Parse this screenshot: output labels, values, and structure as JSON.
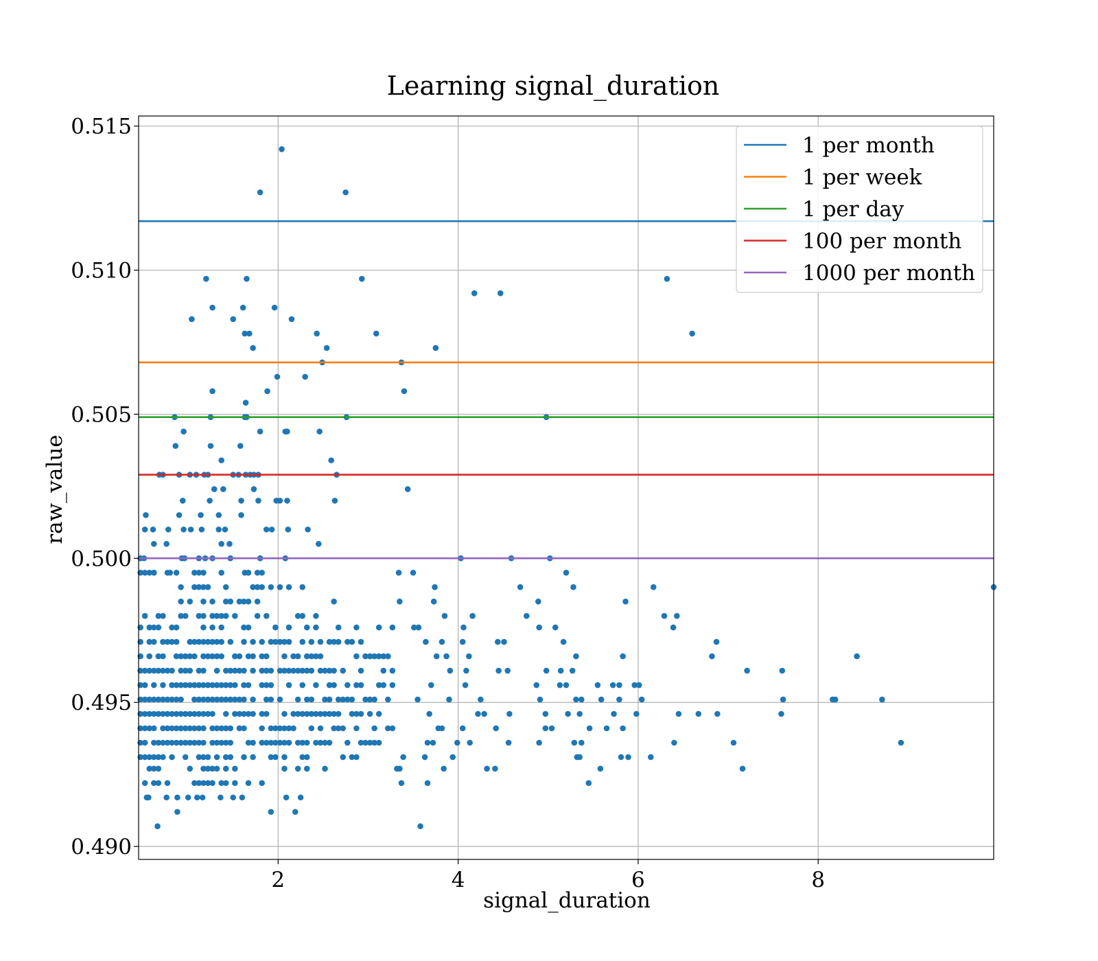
{
  "chart_data": {
    "type": "scatter",
    "title": "Learning signal_duration",
    "xlabel": "signal_duration",
    "ylabel": "raw_value",
    "xlim": [
      0.45,
      9.95
    ],
    "ylim": [
      0.48955,
      0.51535
    ],
    "xticks": [
      2,
      4,
      6,
      8
    ],
    "xtick_labels": [
      "2",
      "4",
      "6",
      "8"
    ],
    "yticks": [
      0.49,
      0.495,
      0.5,
      0.505,
      0.51,
      0.515
    ],
    "ytick_labels": [
      "0.490",
      "0.495",
      "0.500",
      "0.505",
      "0.510",
      "0.515"
    ],
    "grid": true,
    "legend_position": "top-right",
    "marker_color": "#1f77b4",
    "hlines": [
      {
        "name": "1 per month",
        "y": 0.5117,
        "color": "#1f77b4"
      },
      {
        "name": "1 per week",
        "y": 0.5068,
        "color": "#ff7f0e"
      },
      {
        "name": "1 per day",
        "y": 0.5049,
        "color": "#2ca02c"
      },
      {
        "name": "100 per month",
        "y": 0.5029,
        "color": "#d62728"
      },
      {
        "name": "1000 per month",
        "y": 0.5,
        "color": "#9467bd"
      }
    ],
    "points": [
      [
        2.04,
        0.5142
      ],
      [
        1.8,
        0.5127
      ],
      [
        2.75,
        0.5127
      ],
      [
        1.2,
        0.5097
      ],
      [
        1.65,
        0.5097
      ],
      [
        2.93,
        0.5097
      ],
      [
        6.32,
        0.5097
      ],
      [
        4.18,
        0.5092
      ],
      [
        4.47,
        0.5092
      ],
      [
        1.27,
        0.5087
      ],
      [
        1.61,
        0.5087
      ],
      [
        1.96,
        0.5087
      ],
      [
        1.04,
        0.5083
      ],
      [
        1.5,
        0.5083
      ],
      [
        2.15,
        0.5083
      ],
      [
        1.63,
        0.5078
      ],
      [
        1.68,
        0.5078
      ],
      [
        2.43,
        0.5078
      ],
      [
        3.09,
        0.5078
      ],
      [
        6.6,
        0.5078
      ],
      [
        1.72,
        0.5073
      ],
      [
        2.54,
        0.5073
      ],
      [
        3.75,
        0.5073
      ],
      [
        2.49,
        0.5068
      ],
      [
        3.37,
        0.5068
      ],
      [
        1.99,
        0.5063
      ],
      [
        2.3,
        0.5063
      ],
      [
        1.27,
        0.5058
      ],
      [
        1.88,
        0.5058
      ],
      [
        3.4,
        0.5058
      ],
      [
        1.64,
        0.5054
      ],
      [
        0.85,
        0.5049
      ],
      [
        1.25,
        0.5049
      ],
      [
        1.63,
        0.5049
      ],
      [
        1.65,
        0.5049
      ],
      [
        2.76,
        0.5049
      ],
      [
        4.98,
        0.5049
      ],
      [
        0.95,
        0.5044
      ],
      [
        1.8,
        0.5044
      ],
      [
        2.08,
        0.5044
      ],
      [
        2.1,
        0.5044
      ],
      [
        2.46,
        0.5044
      ],
      [
        0.86,
        0.5039
      ],
      [
        1.25,
        0.5039
      ],
      [
        1.58,
        0.5039
      ],
      [
        1.37,
        0.5034
      ],
      [
        2.59,
        0.5034
      ],
      [
        0.68,
        0.5029
      ],
      [
        0.72,
        0.5029
      ],
      [
        0.9,
        0.5029
      ],
      [
        1.02,
        0.5029
      ],
      [
        1.09,
        0.5029
      ],
      [
        1.18,
        0.5029
      ],
      [
        1.22,
        0.5029
      ],
      [
        1.5,
        0.5029
      ],
      [
        1.56,
        0.5029
      ],
      [
        1.64,
        0.5029
      ],
      [
        1.69,
        0.5029
      ],
      [
        1.73,
        0.5029
      ],
      [
        1.78,
        0.5029
      ],
      [
        2.65,
        0.5029
      ],
      [
        1.29,
        0.5024
      ],
      [
        1.39,
        0.5024
      ],
      [
        1.73,
        0.5024
      ],
      [
        3.44,
        0.5024
      ],
      [
        0.94,
        0.502
      ],
      [
        1.24,
        0.502
      ],
      [
        1.59,
        0.502
      ],
      [
        1.78,
        0.502
      ],
      [
        1.98,
        0.502
      ],
      [
        2.02,
        0.502
      ],
      [
        2.1,
        0.502
      ],
      [
        2.63,
        0.502
      ],
      [
        0.53,
        0.5015
      ],
      [
        0.9,
        0.5015
      ],
      [
        1.14,
        0.5015
      ],
      [
        1.34,
        0.5015
      ],
      [
        1.59,
        0.5015
      ],
      [
        0.52,
        0.501
      ],
      [
        0.61,
        0.501
      ],
      [
        0.78,
        0.501
      ],
      [
        0.95,
        0.501
      ],
      [
        1.03,
        0.501
      ],
      [
        1.15,
        0.501
      ],
      [
        1.34,
        0.501
      ],
      [
        1.41,
        0.501
      ],
      [
        1.87,
        0.501
      ],
      [
        1.93,
        0.501
      ],
      [
        2.11,
        0.501
      ],
      [
        2.33,
        0.501
      ],
      [
        0.62,
        0.5005
      ],
      [
        0.76,
        0.5005
      ],
      [
        1.37,
        0.5005
      ],
      [
        1.46,
        0.5005
      ],
      [
        2.45,
        0.5005
      ],
      [
        0.47,
        0.5
      ],
      [
        0.51,
        0.5
      ],
      [
        0.93,
        0.5
      ],
      [
        0.96,
        0.5
      ],
      [
        1.12,
        0.5
      ],
      [
        1.19,
        0.5
      ],
      [
        1.27,
        0.5
      ],
      [
        1.47,
        0.5
      ],
      [
        1.8,
        0.5
      ],
      [
        2.08,
        0.5
      ],
      [
        4.03,
        0.5
      ],
      [
        4.59,
        0.5
      ],
      [
        5.02,
        0.5
      ],
      [
        0.47,
        0.4995
      ],
      [
        0.62,
        0.4995
      ],
      [
        0.8,
        0.4995
      ],
      [
        1.12,
        0.4995
      ],
      [
        1.63,
        0.4995
      ],
      [
        3.34,
        0.4995
      ],
      [
        3.5,
        0.4995
      ],
      [
        5.2,
        0.4995
      ],
      [
        3.74,
        0.499
      ],
      [
        4.69,
        0.499
      ],
      [
        5.28,
        0.499
      ],
      [
        6.17,
        0.499
      ],
      [
        9.95,
        0.499
      ],
      [
        3.35,
        0.4985
      ],
      [
        3.73,
        0.4985
      ],
      [
        4.89,
        0.4985
      ],
      [
        5.86,
        0.4985
      ],
      [
        3.85,
        0.498
      ],
      [
        4.16,
        0.498
      ],
      [
        4.76,
        0.498
      ],
      [
        6.29,
        0.498
      ],
      [
        6.43,
        0.498
      ],
      [
        3.51,
        0.4976
      ],
      [
        3.56,
        0.4976
      ],
      [
        4.06,
        0.4976
      ],
      [
        4.9,
        0.4976
      ],
      [
        5.08,
        0.4976
      ],
      [
        6.39,
        0.4976
      ],
      [
        3.64,
        0.4971
      ],
      [
        3.82,
        0.4971
      ],
      [
        4.05,
        0.4971
      ],
      [
        4.44,
        0.4971
      ],
      [
        4.51,
        0.4971
      ],
      [
        5.17,
        0.4971
      ],
      [
        6.87,
        0.4971
      ],
      [
        3.76,
        0.4966
      ],
      [
        3.87,
        0.4966
      ],
      [
        4.12,
        0.4966
      ],
      [
        5.31,
        0.4966
      ],
      [
        5.83,
        0.4966
      ],
      [
        6.82,
        0.4966
      ],
      [
        8.43,
        0.4966
      ],
      [
        3.91,
        0.4961
      ],
      [
        4.09,
        0.4961
      ],
      [
        4.45,
        0.4961
      ],
      [
        4.55,
        0.4961
      ],
      [
        4.98,
        0.4961
      ],
      [
        5.14,
        0.4961
      ],
      [
        5.27,
        0.4961
      ],
      [
        7.21,
        0.4961
      ],
      [
        7.6,
        0.4961
      ],
      [
        3.7,
        0.4956
      ],
      [
        4.08,
        0.4956
      ],
      [
        4.87,
        0.4956
      ],
      [
        5.13,
        0.4956
      ],
      [
        5.2,
        0.4956
      ],
      [
        5.55,
        0.4956
      ],
      [
        5.72,
        0.4956
      ],
      [
        5.79,
        0.4956
      ],
      [
        5.96,
        0.4956
      ],
      [
        6.01,
        0.4956
      ],
      [
        3.55,
        0.4951
      ],
      [
        3.9,
        0.4951
      ],
      [
        4.25,
        0.4951
      ],
      [
        4.91,
        0.4951
      ],
      [
        5.31,
        0.4951
      ],
      [
        5.37,
        0.4951
      ],
      [
        5.59,
        0.4951
      ],
      [
        5.79,
        0.4951
      ],
      [
        6.04,
        0.4951
      ],
      [
        7.61,
        0.4951
      ],
      [
        8.16,
        0.4951
      ],
      [
        8.19,
        0.4951
      ],
      [
        8.71,
        0.4951
      ],
      [
        3.68,
        0.4946
      ],
      [
        4.22,
        0.4946
      ],
      [
        4.29,
        0.4946
      ],
      [
        4.57,
        0.4946
      ],
      [
        4.97,
        0.4946
      ],
      [
        5.22,
        0.4946
      ],
      [
        5.35,
        0.4946
      ],
      [
        5.73,
        0.4946
      ],
      [
        5.98,
        0.4946
      ],
      [
        6.45,
        0.4946
      ],
      [
        6.67,
        0.4946
      ],
      [
        6.88,
        0.4946
      ],
      [
        7.59,
        0.4946
      ],
      [
        3.78,
        0.4941
      ],
      [
        3.82,
        0.4941
      ],
      [
        4.05,
        0.4941
      ],
      [
        4.42,
        0.4941
      ],
      [
        4.97,
        0.4941
      ],
      [
        5.04,
        0.4941
      ],
      [
        5.46,
        0.4941
      ],
      [
        5.65,
        0.4941
      ],
      [
        5.83,
        0.4941
      ],
      [
        3.66,
        0.4936
      ],
      [
        3.72,
        0.4936
      ],
      [
        3.99,
        0.4936
      ],
      [
        4.13,
        0.4936
      ],
      [
        4.56,
        0.4936
      ],
      [
        4.9,
        0.4936
      ],
      [
        5.29,
        0.4936
      ],
      [
        5.37,
        0.4936
      ],
      [
        6.4,
        0.4936
      ],
      [
        7.06,
        0.4936
      ],
      [
        8.92,
        0.4936
      ],
      [
        3.39,
        0.4931
      ],
      [
        3.63,
        0.4931
      ],
      [
        3.94,
        0.4931
      ],
      [
        5.32,
        0.4931
      ],
      [
        5.35,
        0.4931
      ],
      [
        5.81,
        0.4931
      ],
      [
        5.89,
        0.4931
      ],
      [
        6.14,
        0.4931
      ],
      [
        3.32,
        0.4927
      ],
      [
        3.35,
        0.4927
      ],
      [
        3.84,
        0.4927
      ],
      [
        4.32,
        0.4927
      ],
      [
        4.41,
        0.4927
      ],
      [
        5.58,
        0.4927
      ],
      [
        7.16,
        0.4927
      ],
      [
        3.37,
        0.4922
      ],
      [
        3.66,
        0.4922
      ],
      [
        5.45,
        0.4922
      ],
      [
        0.54,
        0.4917
      ],
      [
        0.56,
        0.4917
      ],
      [
        0.76,
        0.4917
      ],
      [
        0.88,
        0.4917
      ],
      [
        1.0,
        0.4917
      ],
      [
        1.1,
        0.4917
      ],
      [
        1.16,
        0.4917
      ],
      [
        1.36,
        0.4917
      ],
      [
        1.5,
        0.4917
      ],
      [
        1.6,
        0.4917
      ],
      [
        2.09,
        0.4917
      ],
      [
        2.25,
        0.4917
      ],
      [
        0.88,
        0.4912
      ],
      [
        1.92,
        0.4912
      ],
      [
        2.19,
        0.4912
      ],
      [
        0.66,
        0.4907
      ],
      [
        3.58,
        0.4907
      ]
    ],
    "dense_band": {
      "x_min": 0.47,
      "x_max": 3.3,
      "rows": [
        [
          0.4995,
          0.4,
          1.9
        ],
        [
          0.499,
          0.45,
          2.3
        ],
        [
          0.4985,
          0.3,
          2.8
        ],
        [
          0.498,
          0.3,
          3.0
        ],
        [
          0.4976,
          0.5,
          3.3
        ],
        [
          0.4971,
          0.65,
          3.3
        ],
        [
          0.4966,
          0.8,
          3.3
        ],
        [
          0.4961,
          0.95,
          3.3
        ],
        [
          0.4956,
          0.95,
          3.3
        ],
        [
          0.4951,
          0.95,
          3.3
        ],
        [
          0.4946,
          0.95,
          3.3
        ],
        [
          0.4941,
          0.9,
          3.3
        ],
        [
          0.4936,
          0.85,
          3.2
        ],
        [
          0.4931,
          0.7,
          2.9
        ],
        [
          0.4927,
          0.55,
          2.6
        ],
        [
          0.4922,
          0.3,
          2.0
        ]
      ]
    }
  }
}
